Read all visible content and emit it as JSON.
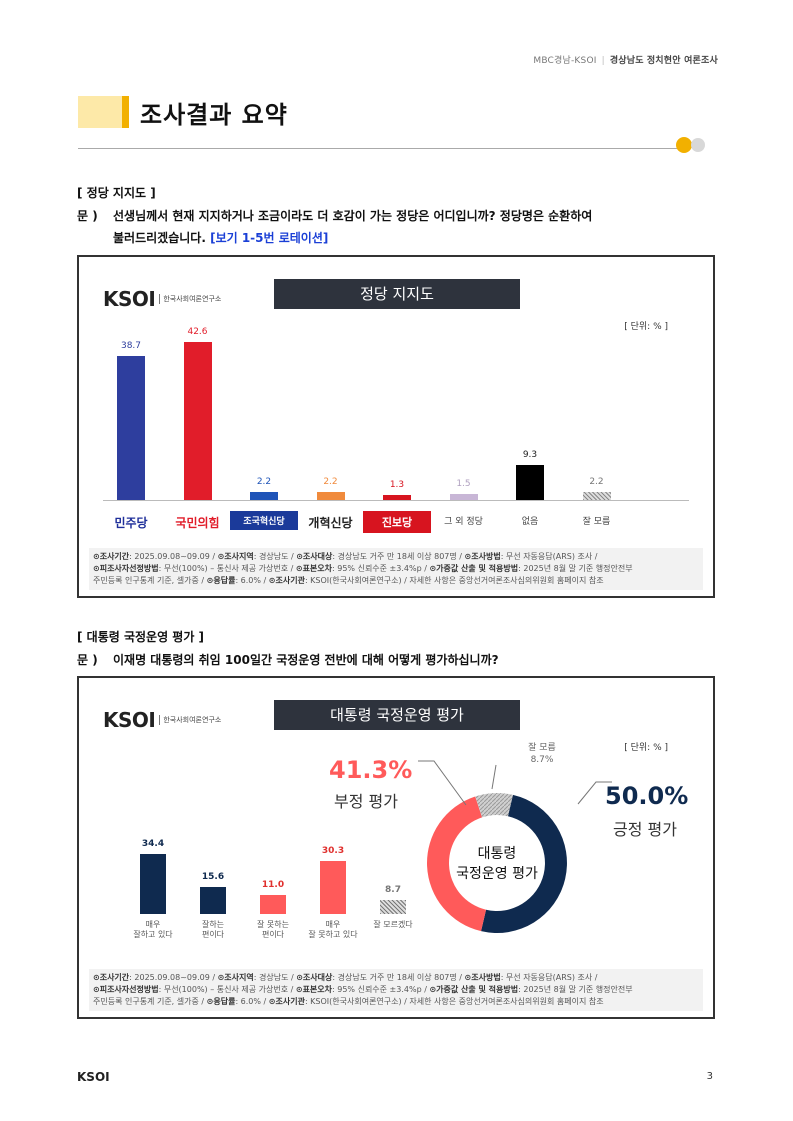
{
  "header": {
    "org": "MBC경남-KSOI",
    "region": "경상남도",
    "survey": "정치현안 여론조사"
  },
  "page_title": "조사결과 요약",
  "section1": {
    "heading": "[ 정당 지지도 ]",
    "q_mark": "문 )",
    "question_line1": "선생님께서 현재 지지하거나 조금이라도 더 호감이 가는 정당은 어디입니까? 정당명은 순환하여",
    "question_line2": "불러드리겠습니다.",
    "question_note": "[보기 1-5번 로테이션]"
  },
  "chart1": {
    "logo_text": "KSOI",
    "logo_sub": "한국사회여론연구소",
    "title": "정당 지지도",
    "unit": "[ 단위: % ]",
    "party_labels": [
      "민주당",
      "국민의힘",
      "조국혁신당",
      "개혁신당",
      "진보당",
      "그 외 정당",
      "없음",
      "잘 모름"
    ],
    "party_label_colors": [
      "#1f2f9a",
      "#e11d2a",
      "#ffffff",
      "#222222",
      "#ffffff",
      "#444444",
      "#444444",
      "#444444"
    ],
    "party_label_bg": [
      "",
      "",
      "#1b3a9a",
      "",
      "#d7141f",
      "",
      "",
      ""
    ],
    "footnote_line1_items": [
      "⊙조사기간",
      ": 2025.09.08~09.09 / ",
      "⊙조사지역",
      ": 경상남도 / ",
      "⊙조사대상",
      ": 경상남도 거주 만 18세 이상 807명 / ",
      "⊙조사방법",
      ": 무선 자동응답(ARS) 조사 /"
    ],
    "footnote_line2_items": [
      "⊙피조사자선정방법",
      ": 무선(100%) – 통신사 제공 가상번호 / ",
      "⊙표본오차",
      ": 95% 신뢰수준 ±3.4%p / ",
      "⊙가중값 산출 및 적용방법",
      ": 2025년 8월 말 기준 행정안전부"
    ],
    "footnote_line3_items": [
      "주민등록 인구통계 기준, 셀가중 / ",
      "⊙응답률",
      ": 6.0% / ",
      "⊙조사기관",
      ": KSOI(한국사회여론연구소) / 자세한 사항은 중앙선거여론조사심의위원회 홈페이지 참조"
    ]
  },
  "section2": {
    "heading": "[ 대통령 국정운영 평가 ]",
    "q_mark": "문 )",
    "question_line1": "이재명 대통령의 취임 100일간 국정운영 전반에 대해 어떻게 평가하십니까?"
  },
  "chart2": {
    "logo_text": "KSOI",
    "logo_sub": "한국사회여론연구소",
    "title": "대통령 국정운영 평가",
    "unit": "[ 단위: % ]",
    "bar_labels": [
      [
        "매우",
        "잘하고 있다"
      ],
      [
        "잘하는",
        "편이다"
      ],
      [
        "잘 못하는",
        "편이다"
      ],
      [
        "매우",
        "잘 못하고 있다"
      ],
      [
        "잘 모르겠다",
        ""
      ]
    ],
    "donut_center_line1": "대통령",
    "donut_center_line2": "국정운영 평가",
    "positive_pct": "50.0%",
    "positive_label": "긍정 평가",
    "negative_pct": "41.3%",
    "negative_label": "부정 평가",
    "unknown_label": "잘 모름",
    "unknown_pct": "8.7%",
    "footnote_line1_items": [
      "⊙조사기간",
      ": 2025.09.08~09.09 / ",
      "⊙조사지역",
      ": 경상남도 / ",
      "⊙조사대상",
      ": 경상남도 거주 만 18세 이상 807명 / ",
      "⊙조사방법",
      ": 무선 자동응답(ARS) 조사 /"
    ],
    "footnote_line2_items": [
      "⊙피조사자선정방법",
      ": 무선(100%) – 통신사 제공 가상번호 / ",
      "⊙표본오차",
      ": 95% 신뢰수준 ±3.4%p / ",
      "⊙가중값 산출 및 적용방법",
      ": 2025년 8월 말 기준 행정안전부"
    ],
    "footnote_line3_items": [
      "주민등록 인구통계 기준, 셀가중 / ",
      "⊙응답률",
      ": 6.0% / ",
      "⊙조사기관",
      ": KSOI(한국사회여론연구소) / 자세한 사항은 중앙선거여론조사심의위원회 홈페이지 참조"
    ]
  },
  "footer": {
    "logo": "KSOI",
    "page": "3"
  },
  "chart_data": [
    {
      "type": "bar",
      "title": "정당 지지도",
      "categories": [
        "민주당",
        "국민의힘",
        "조국혁신당",
        "개혁신당",
        "진보당",
        "그 외 정당",
        "없음",
        "잘 모름"
      ],
      "values": [
        38.7,
        42.6,
        2.2,
        2.2,
        1.3,
        1.5,
        9.3,
        2.2
      ],
      "colors": [
        "#2e3e9e",
        "#e11d2a",
        "#1f54b8",
        "#f08a3c",
        "#d7141f",
        "#c8b6d6",
        "#000000",
        "#999999"
      ],
      "value_label_colors": [
        "#2e3e9e",
        "#e11d2a",
        "#1f54b8",
        "#f08a3c",
        "#d7141f",
        "#b0a0c0",
        "#222222",
        "#777777"
      ],
      "ylim": [
        0,
        50
      ]
    },
    {
      "type": "bar",
      "title": "대통령 국정운영 평가",
      "categories": [
        "매우 잘하고 있다",
        "잘하는 편이다",
        "잘 못하는 편이다",
        "매우 잘 못하고 있다",
        "잘 모르겠다"
      ],
      "values": [
        34.4,
        15.6,
        11.0,
        30.3,
        8.7
      ],
      "colors": [
        "#0f2a4f",
        "#0f2a4f",
        "#ff5a5a",
        "#ff5a5a",
        "#888888"
      ],
      "value_label_colors": [
        "#0f2a4f",
        "#0f2a4f",
        "#e0302e",
        "#e0302e",
        "#777777"
      ],
      "ylim": [
        0,
        40
      ]
    },
    {
      "type": "pie",
      "title": "대통령 국정운영 평가",
      "categories": [
        "긍정 평가",
        "부정 평가",
        "잘 모름"
      ],
      "values": [
        50.0,
        41.3,
        8.7
      ],
      "colors": [
        "#0f2a4f",
        "#ff5a5a",
        "#bfbfbf"
      ]
    }
  ]
}
